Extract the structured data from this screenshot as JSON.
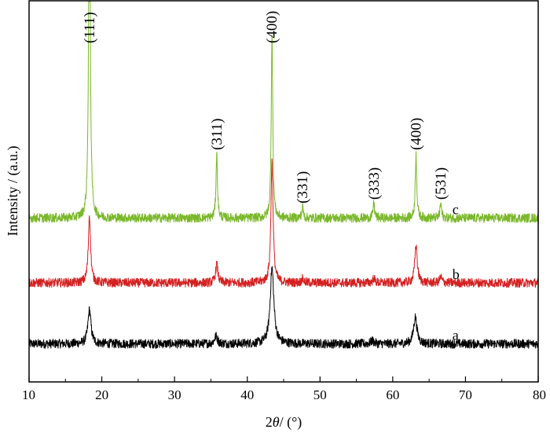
{
  "chart_data": {
    "type": "line",
    "xlabel_prefix": "2",
    "xlabel_theta": "θ",
    "xlabel_suffix": "/ (°)",
    "ylabel": "Intensity / (a.u.)",
    "xlim": [
      10,
      80
    ],
    "xticks": [
      "10",
      "20",
      "30",
      "40",
      "50",
      "60",
      "70",
      "80"
    ],
    "grid": false,
    "series": [
      {
        "name": "a",
        "color": "#000000",
        "baseline": 0.1,
        "noise": 0.012,
        "peaks": [
          {
            "x": 18.3,
            "h": 0.09,
            "w": 0.25
          },
          {
            "x": 35.7,
            "h": 0.02,
            "w": 0.25
          },
          {
            "x": 43.4,
            "h": 0.2,
            "w": 0.3
          },
          {
            "x": 57.2,
            "h": 0.008,
            "w": 0.25
          },
          {
            "x": 63.1,
            "h": 0.07,
            "w": 0.28
          }
        ]
      },
      {
        "name": "b",
        "color": "#d42020",
        "baseline": 0.26,
        "noise": 0.012,
        "peaks": [
          {
            "x": 18.3,
            "h": 0.18,
            "w": 0.18
          },
          {
            "x": 35.8,
            "h": 0.05,
            "w": 0.18
          },
          {
            "x": 43.4,
            "h": 0.32,
            "w": 0.18
          },
          {
            "x": 47.6,
            "h": 0.01,
            "w": 0.18
          },
          {
            "x": 57.4,
            "h": 0.012,
            "w": 0.18
          },
          {
            "x": 63.2,
            "h": 0.1,
            "w": 0.2
          },
          {
            "x": 66.6,
            "h": 0.015,
            "w": 0.18
          }
        ]
      },
      {
        "name": "c",
        "color": "#7ab82a",
        "baseline": 0.43,
        "noise": 0.012,
        "peaks": [
          {
            "x": 18.3,
            "h": 1.1,
            "w": 0.12
          },
          {
            "x": 35.8,
            "h": 0.17,
            "w": 0.12
          },
          {
            "x": 43.4,
            "h": 0.49,
            "w": 0.12
          },
          {
            "x": 47.6,
            "h": 0.03,
            "w": 0.12
          },
          {
            "x": 57.4,
            "h": 0.04,
            "w": 0.12
          },
          {
            "x": 63.2,
            "h": 0.17,
            "w": 0.12
          },
          {
            "x": 66.6,
            "h": 0.04,
            "w": 0.12
          }
        ]
      }
    ],
    "peak_labels": [
      {
        "x": 18.3,
        "text": "(111)"
      },
      {
        "x": 35.8,
        "text": "(311)"
      },
      {
        "x": 43.4,
        "text": "(400)"
      },
      {
        "x": 47.6,
        "text": "(331)"
      },
      {
        "x": 57.4,
        "text": "(333)"
      },
      {
        "x": 63.2,
        "text": "(400)"
      },
      {
        "x": 66.6,
        "text": "(531)"
      }
    ]
  }
}
